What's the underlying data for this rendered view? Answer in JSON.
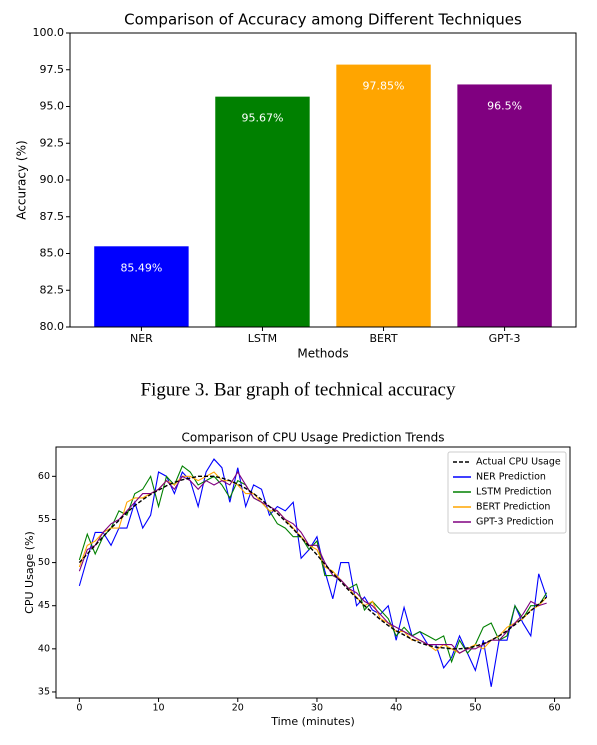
{
  "chart_data": [
    {
      "type": "bar",
      "title": "Comparison of Accuracy among Different Techniques",
      "xlabel": "Methods",
      "ylabel": "Accuracy (%)",
      "categories": [
        "NER",
        "LSTM",
        "BERT",
        "GPT-3"
      ],
      "values": [
        85.49,
        95.67,
        97.85,
        96.5
      ],
      "value_labels": [
        "85.49%",
        "95.67%",
        "97.85%",
        "96.5%"
      ],
      "colors": [
        "blue",
        "green",
        "orange",
        "purple"
      ],
      "ylim": [
        80,
        100
      ],
      "yticks": [
        {
          "value": 80,
          "label": "80.0"
        },
        82.5,
        {
          "value": 85,
          "label": "85.0"
        },
        87.5,
        {
          "value": 90,
          "label": "90.0"
        },
        92.5,
        {
          "value": 95,
          "label": "95.0"
        },
        97.5,
        {
          "value": 100,
          "label": "100.0"
        }
      ]
    },
    {
      "type": "line",
      "title": "Comparison of CPU Usage Prediction Trends",
      "xlabel": "Time (minutes)",
      "ylabel": "CPU Usage (%)",
      "x": [
        0,
        1,
        2,
        3,
        4,
        5,
        6,
        7,
        8,
        9,
        10,
        11,
        12,
        13,
        14,
        15,
        16,
        17,
        18,
        19,
        20,
        21,
        22,
        23,
        24,
        25,
        26,
        27,
        28,
        29,
        30,
        31,
        32,
        33,
        34,
        35,
        36,
        37,
        38,
        39,
        40,
        41,
        42,
        43,
        44,
        45,
        46,
        47,
        48,
        49,
        50,
        51,
        52,
        53,
        54,
        55,
        56,
        57,
        58,
        59
      ],
      "series": [
        {
          "name": "Actual CPU Usage",
          "color": "black",
          "style": "dashed",
          "values": [
            50,
            51,
            52,
            53,
            54,
            54.9,
            55.8,
            56.6,
            57.3,
            57.9,
            58.4,
            58.9,
            59.3,
            59.6,
            59.8,
            60,
            60,
            60,
            59.8,
            59.5,
            59.1,
            58.6,
            58,
            57.3,
            56.5,
            55.7,
            54.8,
            53.9,
            52.9,
            51.9,
            50.9,
            49.8,
            48.8,
            47.8,
            46.8,
            45.9,
            45,
            44.2,
            43.4,
            42.7,
            42.1,
            41.6,
            41.1,
            40.7,
            40.4,
            40.2,
            40.1,
            40,
            40,
            40.1,
            40.3,
            40.6,
            41,
            41.5,
            42.1,
            42.8,
            43.6,
            44.4,
            45.2,
            46
          ]
        },
        {
          "name": "NER Prediction",
          "color": "blue",
          "style": "solid",
          "values": [
            47.3,
            50.5,
            53.5,
            53.5,
            52,
            54,
            54,
            57,
            54,
            55.5,
            60.5,
            60,
            58,
            60.5,
            59.5,
            56.5,
            60.5,
            62,
            61,
            57,
            61,
            56.5,
            59,
            58.5,
            55.5,
            56.5,
            56,
            57,
            50.5,
            51.5,
            53,
            49,
            45.8,
            50,
            50,
            45,
            46,
            44.5,
            44,
            45,
            41,
            44.8,
            41.5,
            42,
            40.5,
            40.5,
            37.8,
            39,
            41.5,
            39.5,
            37.5,
            41,
            35.6,
            41,
            41,
            45,
            43,
            41.5,
            48.7,
            46
          ]
        },
        {
          "name": "LSTM Prediction",
          "color": "green",
          "style": "solid",
          "values": [
            50.3,
            53.3,
            51,
            53,
            54,
            56,
            55.5,
            58,
            58.5,
            60,
            56.5,
            60,
            59,
            61.2,
            60.5,
            59,
            59.5,
            60,
            59,
            57.5,
            59.5,
            59,
            57.5,
            57,
            56,
            54.5,
            54,
            53,
            53,
            51.5,
            52.5,
            48.5,
            48.5,
            48,
            47,
            47.5,
            44.5,
            45.5,
            44.5,
            43.5,
            41.5,
            42.5,
            41.5,
            42,
            41.5,
            41,
            41.5,
            38.5,
            41,
            39.5,
            40.5,
            42.5,
            43,
            41,
            41.5,
            45,
            43.5,
            45,
            45,
            46.5
          ]
        },
        {
          "name": "BERT Prediction",
          "color": "orange",
          "style": "solid",
          "values": [
            49.5,
            52,
            52.5,
            53.5,
            54,
            54,
            57,
            57.5,
            57.5,
            58,
            58.5,
            59.5,
            59,
            60,
            60,
            59.5,
            60,
            60.5,
            59.5,
            59.5,
            59,
            58,
            58,
            57,
            56,
            56,
            55,
            54,
            53,
            52,
            51.5,
            49.5,
            49,
            48,
            47,
            46,
            45,
            45.5,
            43.5,
            43,
            42,
            42,
            41,
            41,
            40.5,
            39.8,
            40.5,
            40,
            39.5,
            40,
            40.5,
            40,
            41,
            41.5,
            42.5,
            43,
            43.5,
            44.5,
            45,
            46
          ]
        },
        {
          "name": "GPT-3 Prediction",
          "color": "purple",
          "style": "solid",
          "values": [
            49,
            51.5,
            52,
            53.5,
            54.5,
            55,
            56,
            57,
            58,
            58,
            58.5,
            59.5,
            58.5,
            60,
            59.5,
            58.5,
            59.5,
            59,
            59.5,
            59,
            60.5,
            59,
            57.5,
            57,
            56.5,
            56,
            55,
            54.5,
            53.5,
            52,
            52,
            50,
            48.5,
            48,
            47,
            46.5,
            45.5,
            45,
            44,
            43,
            42.5,
            42,
            41.5,
            41,
            40.5,
            40.5,
            40.5,
            40.5,
            39.5,
            40,
            40,
            40.5,
            41,
            41,
            42,
            43,
            44,
            45.5,
            45,
            45.3
          ]
        }
      ],
      "xlim": [
        -2.95,
        61.95
      ],
      "xticks": [
        0,
        10,
        20,
        30,
        40,
        50,
        60
      ],
      "ylim": [
        34.3,
        63.4
      ],
      "yticks": [
        35,
        40,
        45,
        50,
        55,
        60
      ],
      "legend": "upper right"
    }
  ],
  "caption": "Figure 3. Bar graph of technical accuracy"
}
